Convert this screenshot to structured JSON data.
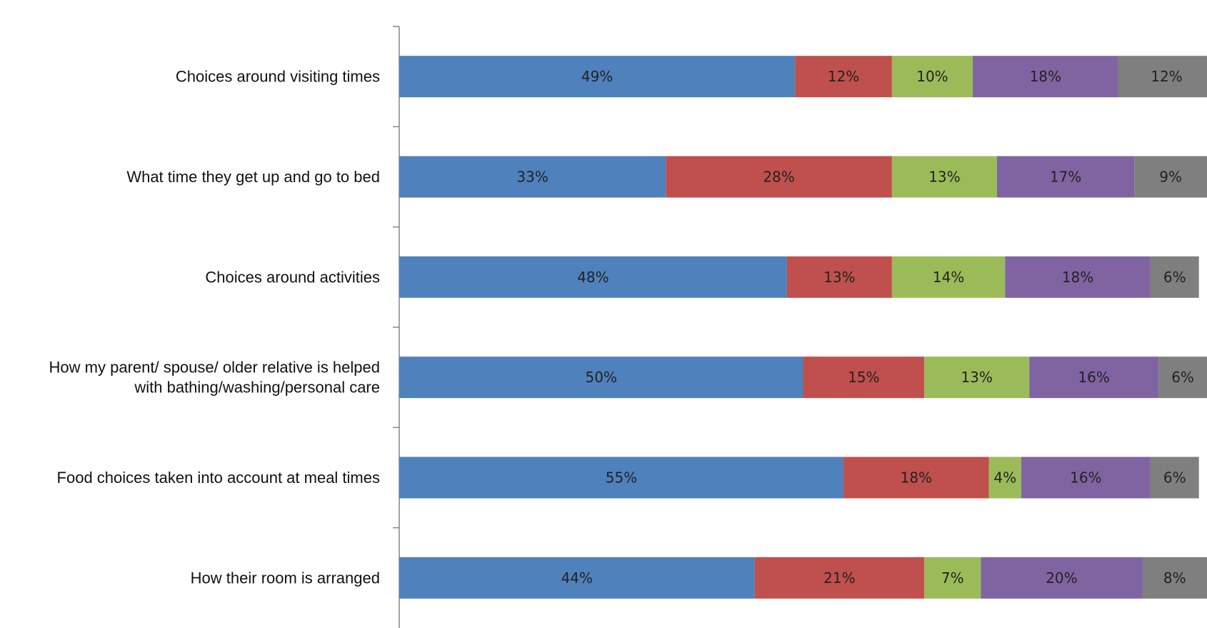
{
  "chart_data": {
    "type": "bar",
    "orientation": "horizontal",
    "stacked": "100%",
    "title": "",
    "xlabel": "",
    "ylabel": "",
    "grid": false,
    "legend": "none",
    "xlim": [
      0,
      100
    ],
    "categories": [
      "Choices around visiting times",
      "What time they get up and go to bed",
      "Choices around activities",
      "How my parent/ spouse/ older relative is helped with bathing/washing/personal care",
      "Food choices taken into account at meal times",
      "How their room is arranged"
    ],
    "category_lines": [
      [
        "Choices around visiting times"
      ],
      [
        "What time they get up and go to bed"
      ],
      [
        "Choices around activities"
      ],
      [
        "How my parent/ spouse/ older relative is helped",
        "with bathing/washing/personal care"
      ],
      [
        "Food choices taken into account at meal times"
      ],
      [
        "How their room is arranged"
      ]
    ],
    "series": [
      {
        "color": "#4F81BD",
        "values": [
          49,
          33,
          48,
          50,
          55,
          44
        ]
      },
      {
        "color": "#C0504D",
        "values": [
          12,
          28,
          13,
          15,
          18,
          21
        ]
      },
      {
        "color": "#9BBB59",
        "values": [
          10,
          13,
          14,
          13,
          4,
          7
        ]
      },
      {
        "color": "#8064A2",
        "values": [
          18,
          17,
          18,
          16,
          16,
          20
        ]
      },
      {
        "color": "#7F7F7F",
        "values": [
          12,
          9,
          6,
          6,
          6,
          8
        ]
      }
    ],
    "value_suffix": "%"
  }
}
